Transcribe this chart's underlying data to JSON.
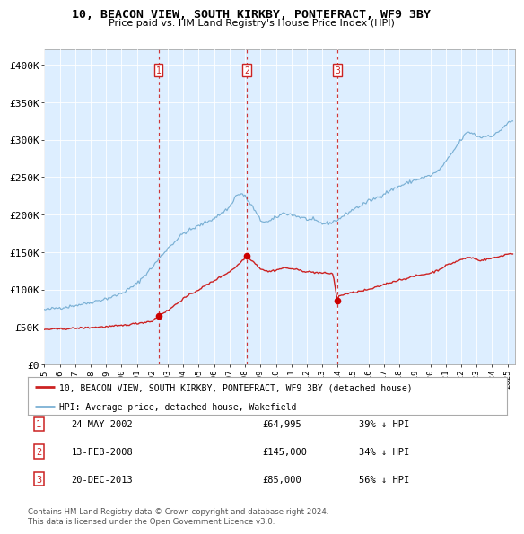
{
  "title": "10, BEACON VIEW, SOUTH KIRKBY, PONTEFRACT, WF9 3BY",
  "subtitle": "Price paid vs. HM Land Registry's House Price Index (HPI)",
  "hpi_color": "#7ab0d4",
  "hpi_fill": "#ddeeff",
  "price_color": "#cc2222",
  "sale_marker_color": "#cc0000",
  "transactions": [
    {
      "num": 1,
      "date_str": "24-MAY-2002",
      "date_x": 2002.39,
      "price": 64995,
      "label": "1",
      "hpi_pct": "39% ↓ HPI"
    },
    {
      "num": 2,
      "date_str": "13-FEB-2008",
      "date_x": 2008.12,
      "price": 145000,
      "label": "2",
      "hpi_pct": "34% ↓ HPI"
    },
    {
      "num": 3,
      "date_str": "20-DEC-2013",
      "date_x": 2013.97,
      "price": 85000,
      "label": "3",
      "hpi_pct": "56% ↓ HPI"
    }
  ],
  "legend_entries": [
    "10, BEACON VIEW, SOUTH KIRKBY, PONTEFRACT, WF9 3BY (detached house)",
    "HPI: Average price, detached house, Wakefield"
  ],
  "footer": "Contains HM Land Registry data © Crown copyright and database right 2024.\nThis data is licensed under the Open Government Licence v3.0.",
  "ylim": [
    0,
    420000
  ],
  "xlim_start": 1995.0,
  "xlim_end": 2025.5,
  "yticks": [
    0,
    50000,
    100000,
    150000,
    200000,
    250000,
    300000,
    350000,
    400000
  ],
  "ytick_labels": [
    "£0",
    "£50K",
    "£100K",
    "£150K",
    "£200K",
    "£250K",
    "£300K",
    "£350K",
    "£400K"
  ]
}
